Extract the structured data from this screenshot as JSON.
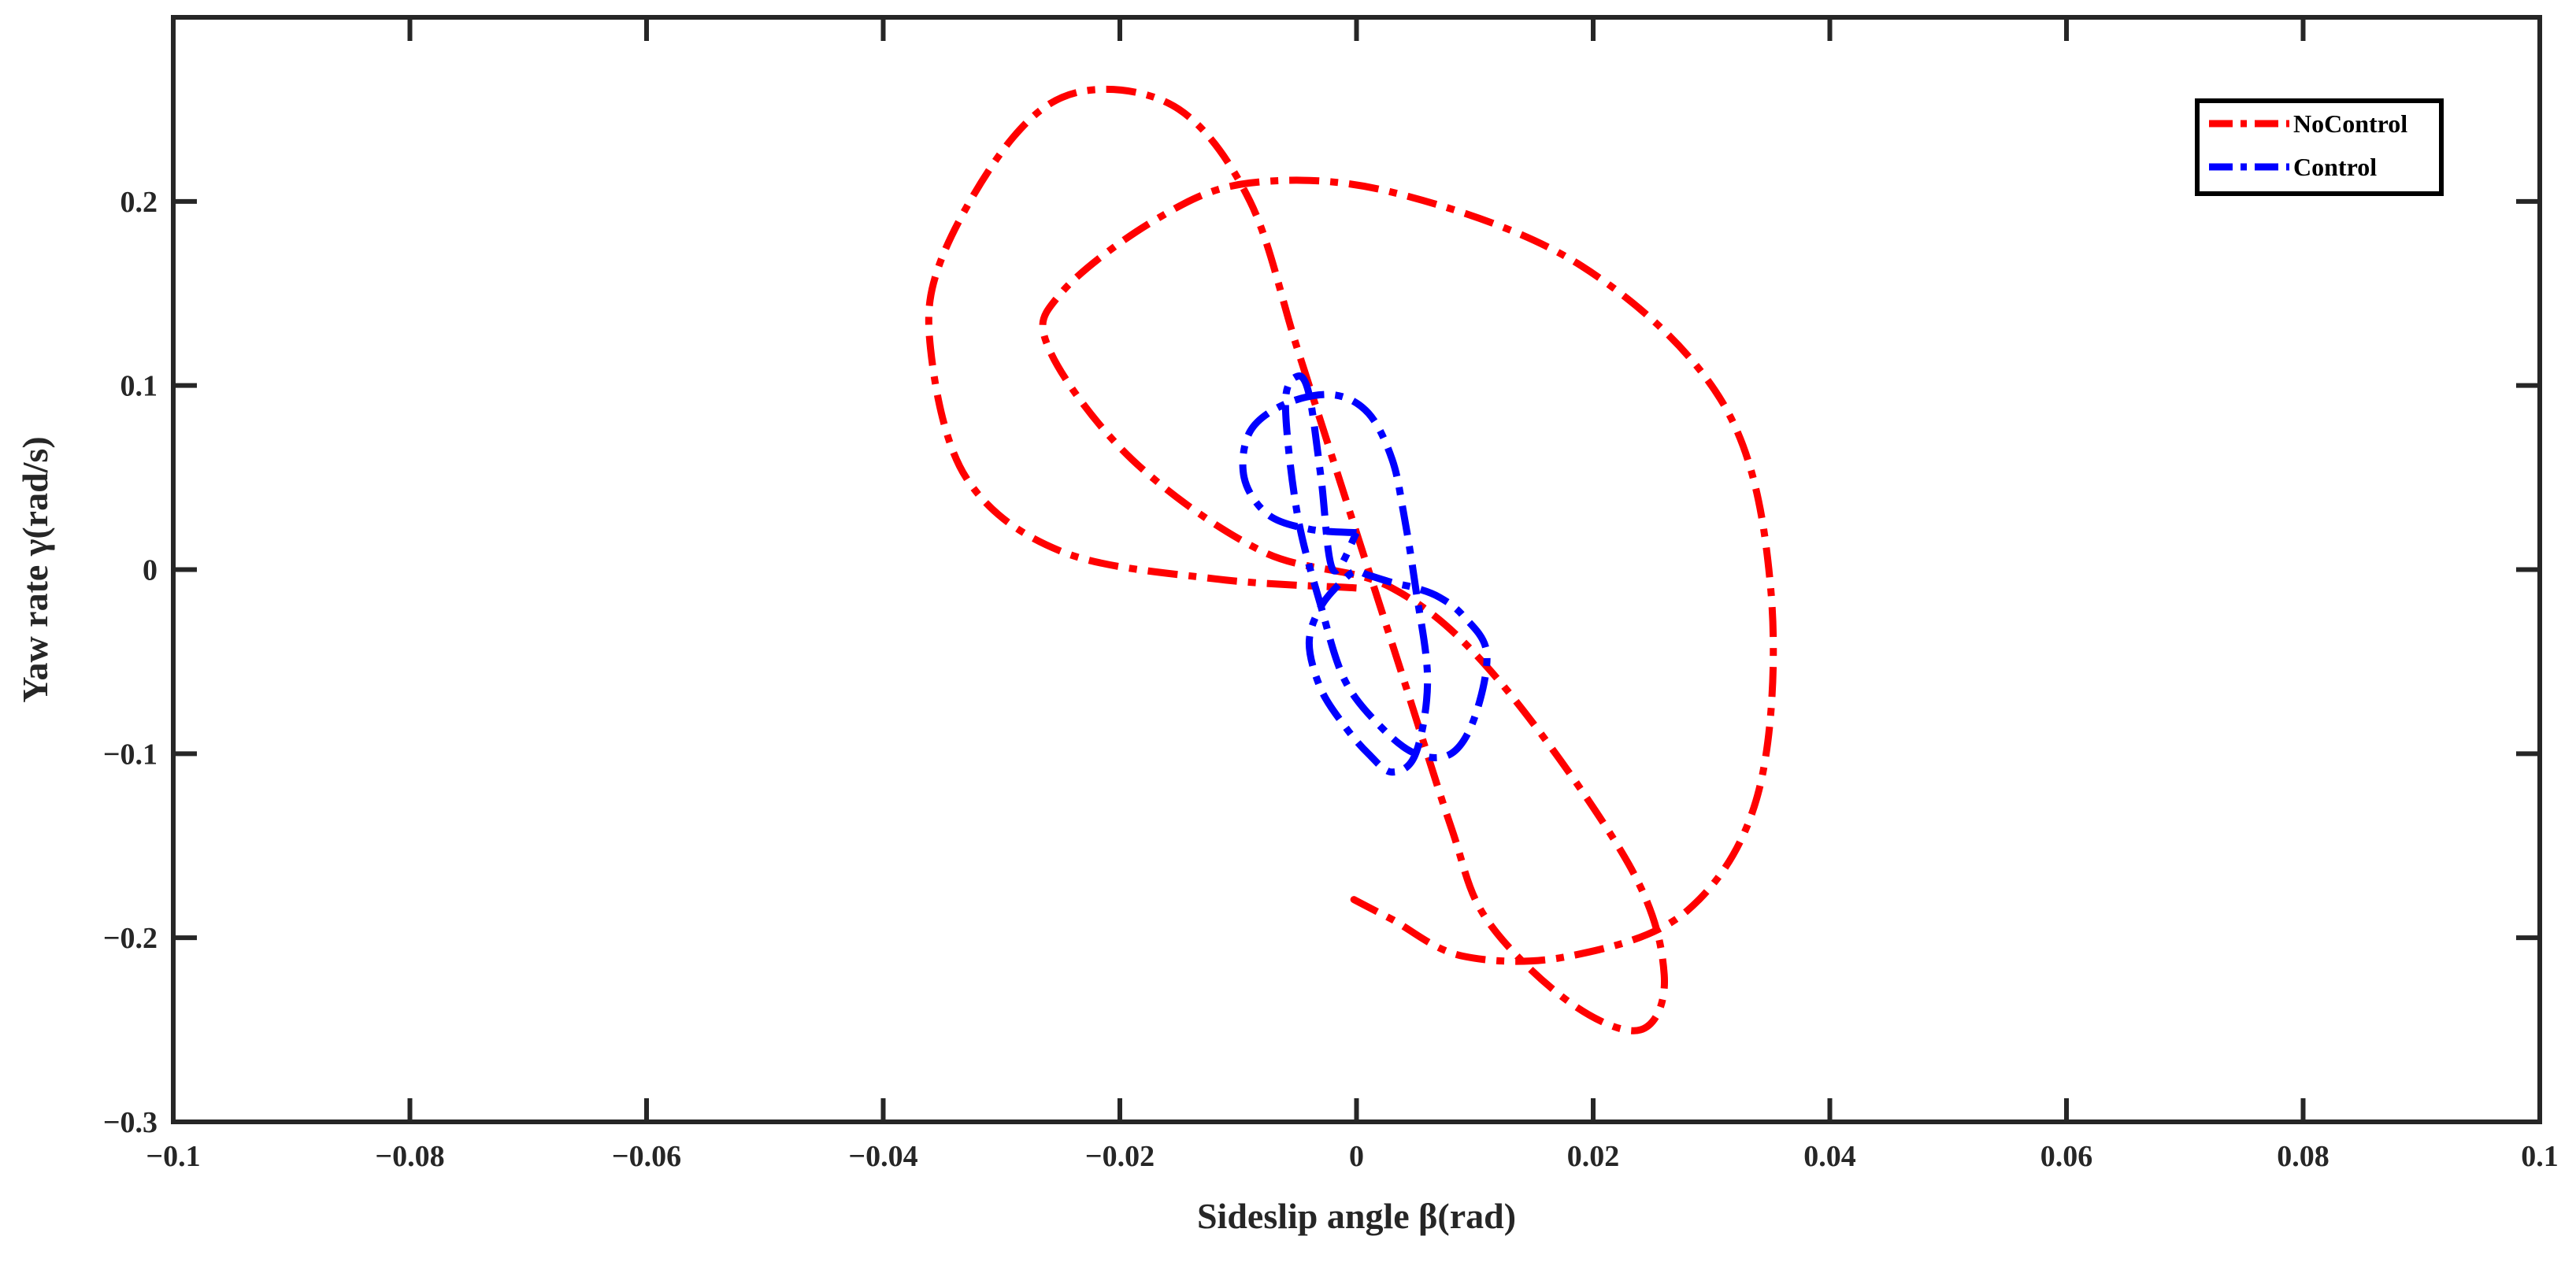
{
  "chart_data": {
    "type": "line",
    "title": "",
    "xlabel": "Sideslip angle β(rad)",
    "ylabel": "Yaw rate γ(rad/s)",
    "xlim": [
      -0.1,
      0.1
    ],
    "ylim": [
      -0.3,
      0.3
    ],
    "x_ticks": [
      -0.1,
      -0.08,
      -0.06,
      -0.04,
      -0.02,
      0,
      0.02,
      0.04,
      0.06,
      0.08,
      0.1
    ],
    "x_tick_labels": [
      "−0.1",
      "−0.08",
      "−0.06",
      "−0.04",
      "−0.02",
      "0",
      "0.02",
      "0.04",
      "0.06",
      "0.08",
      "0.1"
    ],
    "y_ticks": [
      -0.3,
      -0.2,
      -0.1,
      0,
      0.1,
      0.2
    ],
    "y_tick_labels": [
      "−0.3",
      "−0.2",
      "−0.1",
      "0",
      "0.1",
      "0.2"
    ],
    "grid": false,
    "legend_position": "top-right",
    "series": [
      {
        "name": "NoControl",
        "color": "#ff0000",
        "style": "dash-dot",
        "x": [
          0,
          -0.012,
          -0.025,
          -0.033,
          -0.036,
          -0.035,
          -0.029,
          -0.023,
          -0.015,
          -0.009,
          -0.005,
          -0.001,
          0.004,
          0.008,
          0.011,
          0.018,
          0.024,
          0.026,
          0.023,
          0.012,
          0.003,
          -0.008,
          -0.019,
          -0.026,
          -0.025,
          -0.017,
          -0.009,
          0.003,
          0.019,
          0.031,
          0.035,
          0.034,
          0.028,
          0.018,
          0.009,
          0.003,
          0.0,
          0.0
        ],
        "y": [
          -0.01,
          -0.005,
          0.01,
          0.05,
          0.12,
          0.17,
          0.235,
          0.26,
          0.25,
          0.2,
          0.12,
          0.04,
          -0.06,
          -0.14,
          -0.19,
          -0.235,
          -0.25,
          -0.22,
          -0.16,
          -0.06,
          -0.01,
          0.01,
          0.06,
          0.12,
          0.15,
          0.19,
          0.21,
          0.205,
          0.165,
          0.09,
          -0.01,
          -0.12,
          -0.185,
          -0.21,
          -0.21,
          -0.19,
          -0.18,
          -0.18
        ]
      },
      {
        "name": "Control",
        "color": "#0000ff",
        "style": "dash-dot",
        "x": [
          0.0,
          -0.004,
          -0.0075,
          -0.0095,
          -0.009,
          -0.006,
          -0.002,
          0.001,
          0.003,
          0.004,
          0.005,
          0.006,
          0.005,
          0.003,
          0.001,
          -0.001,
          -0.003,
          -0.004,
          -0.003,
          -0.001,
          0.0,
          0.001,
          0.003,
          0.005,
          0.007,
          0.009,
          0.011,
          0.01,
          0.008,
          0.005,
          0.002,
          -0.001,
          -0.003,
          -0.005,
          -0.006,
          -0.005,
          -0.004,
          -0.003,
          -0.002,
          0.0
        ],
        "y": [
          0.02,
          0.022,
          0.03,
          0.05,
          0.075,
          0.09,
          0.095,
          0.085,
          0.06,
          0.03,
          -0.01,
          -0.06,
          -0.1,
          -0.11,
          -0.1,
          -0.085,
          -0.065,
          -0.04,
          -0.02,
          -0.005,
          -0.001,
          -0.003,
          -0.007,
          -0.01,
          -0.015,
          -0.025,
          -0.045,
          -0.08,
          -0.1,
          -0.1,
          -0.085,
          -0.06,
          -0.02,
          0.03,
          0.09,
          0.105,
          0.095,
          0.05,
          0.0,
          0.02
        ]
      }
    ]
  }
}
